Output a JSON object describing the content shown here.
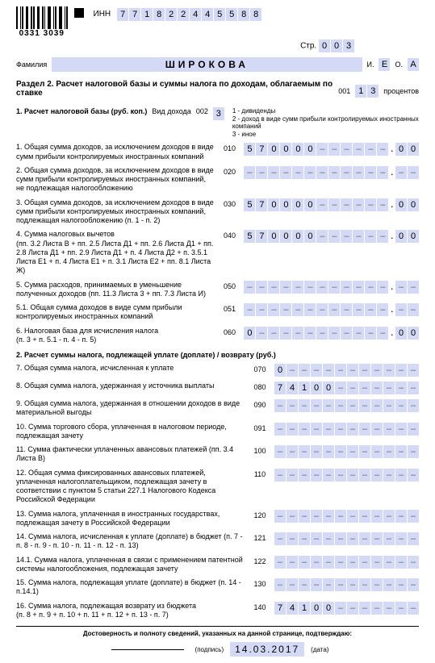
{
  "header": {
    "barcode_number": "0331 3039",
    "inn_label": "ИНН",
    "inn": [
      "7",
      "7",
      "1",
      "8",
      "2",
      "2",
      "4",
      "4",
      "5",
      "5",
      "8",
      "8"
    ],
    "page_label": "Стр.",
    "page": [
      "0",
      "0",
      "3"
    ],
    "surname_label": "Фамилия",
    "surname": "ШИРОКОВА",
    "i_label": "И.",
    "i_val": "Е",
    "o_label": "О.",
    "o_val": "А"
  },
  "section2": {
    "title": "Раздел 2. Расчет налоговой базы и суммы налога по доходам, облагаемым по ставке",
    "code001": "001",
    "rate": [
      "1",
      "3"
    ],
    "percent": "процентов",
    "sub1_title": "1. Расчет налоговой базы (руб. коп.)",
    "vid_label": "Вид дохода",
    "code002": "002",
    "vid_val": "3",
    "legend1": "1 - дивиденды",
    "legend2": "2 - доход в виде сумм прибыли контролируемых иностранных компаний",
    "legend3": "3 - иное"
  },
  "lines": {
    "l1": {
      "desc": "1. Общая сумма доходов, за исключением доходов в виде сумм прибыли контролируемых иностранных компаний",
      "code": "010",
      "int": [
        "5",
        "7",
        "0",
        "0",
        "0",
        "0",
        "",
        "",
        "",
        "",
        "",
        ""
      ],
      "kop": [
        "0",
        "0"
      ]
    },
    "l2": {
      "desc": "2. Общая сумма доходов, за исключением доходов в виде сумм прибыли контролируемых иностранных компаний, не подлежащая налогообложению",
      "code": "020",
      "int": [
        "",
        "",
        "",
        "",
        "",
        "",
        "",
        "",
        "",
        "",
        "",
        ""
      ],
      "kop": [
        "",
        ""
      ]
    },
    "l3": {
      "desc": "3. Общая сумма доходов, за исключением доходов в виде сумм прибыли контролируемых иностранных компаний, подлежащая налогообложению (п. 1 - п. 2)",
      "code": "030",
      "int": [
        "5",
        "7",
        "0",
        "0",
        "0",
        "0",
        "",
        "",
        "",
        "",
        "",
        ""
      ],
      "kop": [
        "0",
        "0"
      ]
    },
    "l4": {
      "desc": "4. Сумма налоговых вычетов\n(пп. 3.2 Листа В + пп. 2.5 Листа Д1 + пп. 2.6 Листа Д1 + пп. 2.8 Листа Д1 + пп. 2.9 Листа Д1 + п. 4 Листа Д2 + п. 3.5.1 Листа Е1 + п. 4 Листа Е1 + п. 3.1 Листа Е2 + пп. 8.1 Листа Ж)",
      "code": "040",
      "int": [
        "5",
        "7",
        "0",
        "0",
        "0",
        "0",
        "",
        "",
        "",
        "",
        "",
        ""
      ],
      "kop": [
        "0",
        "0"
      ]
    },
    "l5": {
      "desc": "5. Сумма расходов, принимаемых в уменьшение полученных доходов (пп. 11.3 Листа 3 + пп. 7.3 Листа И)",
      "code": "050",
      "int": [
        "",
        "",
        "",
        "",
        "",
        "",
        "",
        "",
        "",
        "",
        "",
        ""
      ],
      "kop": [
        "",
        ""
      ]
    },
    "l51": {
      "desc": "5.1. Общая сумма доходов в виде сумм прибыли контролируемых иностранных компаний",
      "code": "051",
      "int": [
        "",
        "",
        "",
        "",
        "",
        "",
        "",
        "",
        "",
        "",
        "",
        ""
      ],
      "kop": [
        "",
        ""
      ]
    },
    "l6": {
      "desc": "6. Налоговая база для исчисления налога\n(п. 3 + п. 5.1 - п. 4 - п. 5)",
      "code": "060",
      "int": [
        "0",
        "",
        "",
        "",
        "",
        "",
        "",
        "",
        "",
        "",
        "",
        ""
      ],
      "kop": [
        "0",
        "0"
      ]
    },
    "l7": {
      "desc": "7. Общая сумма налога, исчисленная к уплате",
      "code": "070",
      "int": [
        "0",
        "",
        "",
        "",
        "",
        "",
        "",
        "",
        "",
        "",
        "",
        ""
      ]
    },
    "l8": {
      "desc": "8. Общая сумма налога, удержанная у источника выплаты",
      "code": "080",
      "int": [
        "7",
        "4",
        "1",
        "0",
        "0",
        "",
        "",
        "",
        "",
        "",
        "",
        ""
      ]
    },
    "l9": {
      "desc": "9. Общая сумма налога, удержанная в отношении доходов в виде материальной выгоды",
      "code": "090",
      "int": [
        "",
        "",
        "",
        "",
        "",
        "",
        "",
        "",
        "",
        "",
        "",
        ""
      ]
    },
    "l10": {
      "desc": "10. Сумма торгового сбора, уплаченная в налоговом периоде, подлежащая зачету",
      "code": "091",
      "int": [
        "",
        "",
        "",
        "",
        "",
        "",
        "",
        "",
        "",
        "",
        "",
        ""
      ]
    },
    "l11": {
      "desc": "11. Сумма фактически уплаченных авансовых платежей (пп. 3.4 Листа В)",
      "code": "100",
      "int": [
        "",
        "",
        "",
        "",
        "",
        "",
        "",
        "",
        "",
        "",
        "",
        ""
      ]
    },
    "l12": {
      "desc": "12. Общая сумма фиксированных авансовых платежей, уплаченная налогоплательщиком, подлежащая зачету в соответствии с пунктом 5 статьи 227.1 Налогового Кодекса Российской Федерации",
      "code": "110",
      "int": [
        "",
        "",
        "",
        "",
        "",
        "",
        "",
        "",
        "",
        "",
        "",
        ""
      ]
    },
    "l13": {
      "desc": "13. Сумма налога, уплаченная в иностранных государствах, подлежащая зачету в Российской Федерации",
      "code": "120",
      "int": [
        "",
        "",
        "",
        "",
        "",
        "",
        "",
        "",
        "",
        "",
        "",
        ""
      ]
    },
    "l14": {
      "desc": "14. Сумма налога, исчисленная к уплате (доплате) в бюджет (п. 7 - п. 8 - п. 9 - п. 10 - п. 11 - п. 12 - п. 13)",
      "code": "121",
      "int": [
        "",
        "",
        "",
        "",
        "",
        "",
        "",
        "",
        "",
        "",
        "",
        ""
      ]
    },
    "l141": {
      "desc": "14.1. Сумма налога, уплаченная в связи с применением патентной системы налогообложения, подлежащая зачету",
      "code": "122",
      "int": [
        "",
        "",
        "",
        "",
        "",
        "",
        "",
        "",
        "",
        "",
        "",
        ""
      ]
    },
    "l15": {
      "desc": "15. Сумма налога, подлежащая уплате (доплате) в бюджет (п. 14 - п.14.1)",
      "code": "130",
      "int": [
        "",
        "",
        "",
        "",
        "",
        "",
        "",
        "",
        "",
        "",
        "",
        ""
      ]
    },
    "l16": {
      "desc": "16. Сумма налога, подлежащая возврату из бюджета\n(п. 8 + п. 9 + п. 10 + п. 11 + п. 12 + п. 13 - п. 7)",
      "code": "140",
      "int": [
        "7",
        "4",
        "1",
        "0",
        "0",
        "",
        "",
        "",
        "",
        "",
        "",
        ""
      ]
    }
  },
  "sub2_title": "2. Расчет суммы налога, подлежащей уплате (доплате) / возврату (руб.)",
  "footer": {
    "text": "Достоверность и полноту сведений, указанных на данной странице, подтверждаю:",
    "sig_label": "(подпись)",
    "date": "14.03.2017",
    "date_label": "(дата)"
  }
}
